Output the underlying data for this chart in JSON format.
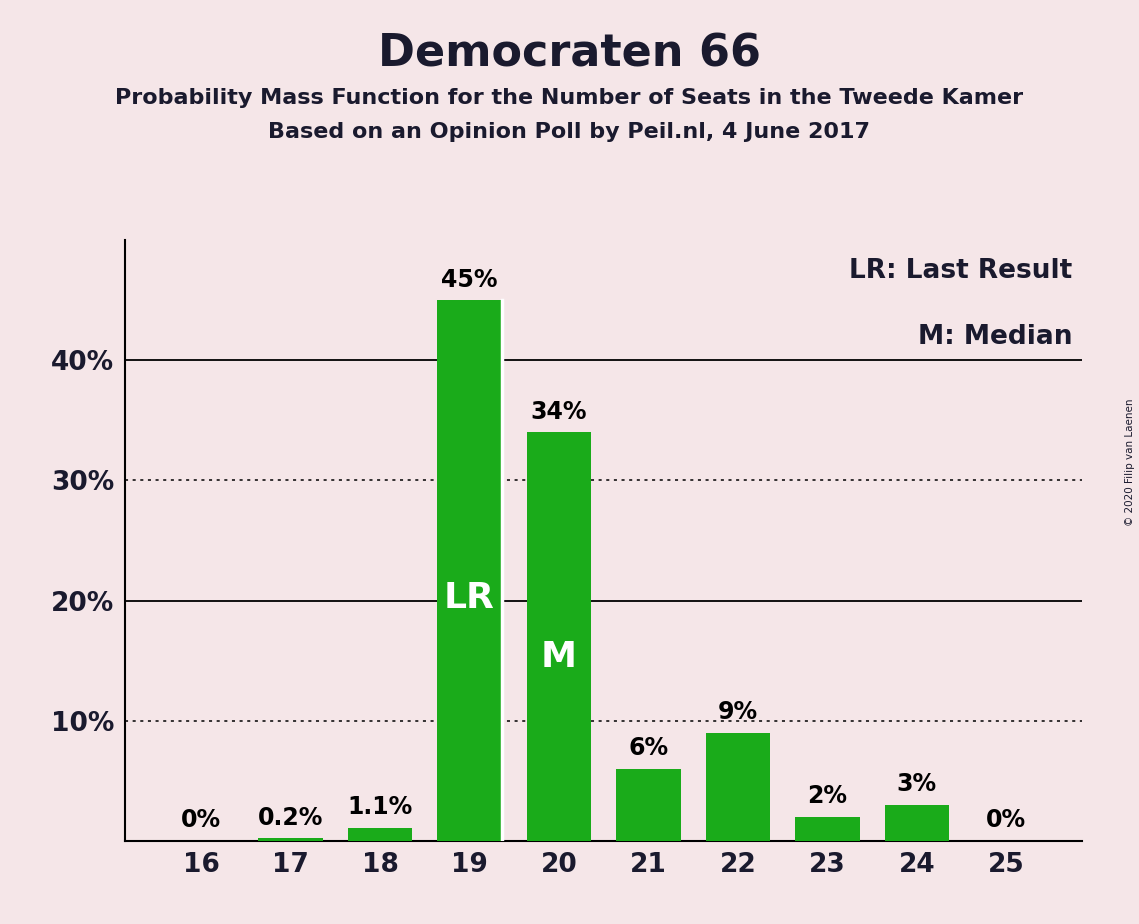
{
  "title": "Democraten 66",
  "subtitle1": "Probability Mass Function for the Number of Seats in the Tweede Kamer",
  "subtitle2": "Based on an Opinion Poll by Peil.nl, 4 June 2017",
  "copyright": "© 2020 Filip van Laenen",
  "categories": [
    16,
    17,
    18,
    19,
    20,
    21,
    22,
    23,
    24,
    25
  ],
  "values": [
    0.0,
    0.2,
    1.1,
    45.0,
    34.0,
    6.0,
    9.0,
    2.0,
    3.0,
    0.0
  ],
  "bar_labels": [
    "0%",
    "0.2%",
    "1.1%",
    "45%",
    "34%",
    "6%",
    "9%",
    "2%",
    "3%",
    "0%"
  ],
  "bar_color": "#1aab1a",
  "background_color": "#f5e6e8",
  "ylabel_ticks": [
    0,
    10,
    20,
    30,
    40,
    50
  ],
  "ylabel_labels": [
    "",
    "10%",
    "20%",
    "30%",
    "40%",
    ""
  ],
  "solid_gridlines": [
    20,
    40
  ],
  "dotted_gridlines": [
    10,
    30
  ],
  "lr_bar_index": 3,
  "median_bar_index": 4,
  "lr_label": "LR",
  "median_label": "M",
  "legend_text1": "LR: Last Result",
  "legend_text2": "M: Median",
  "title_fontsize": 32,
  "subtitle_fontsize": 16,
  "bar_label_fontsize": 17,
  "axis_label_fontsize": 19,
  "legend_fontsize": 19,
  "bar_inner_label_fontsize": 26,
  "ylim": [
    0,
    50
  ]
}
